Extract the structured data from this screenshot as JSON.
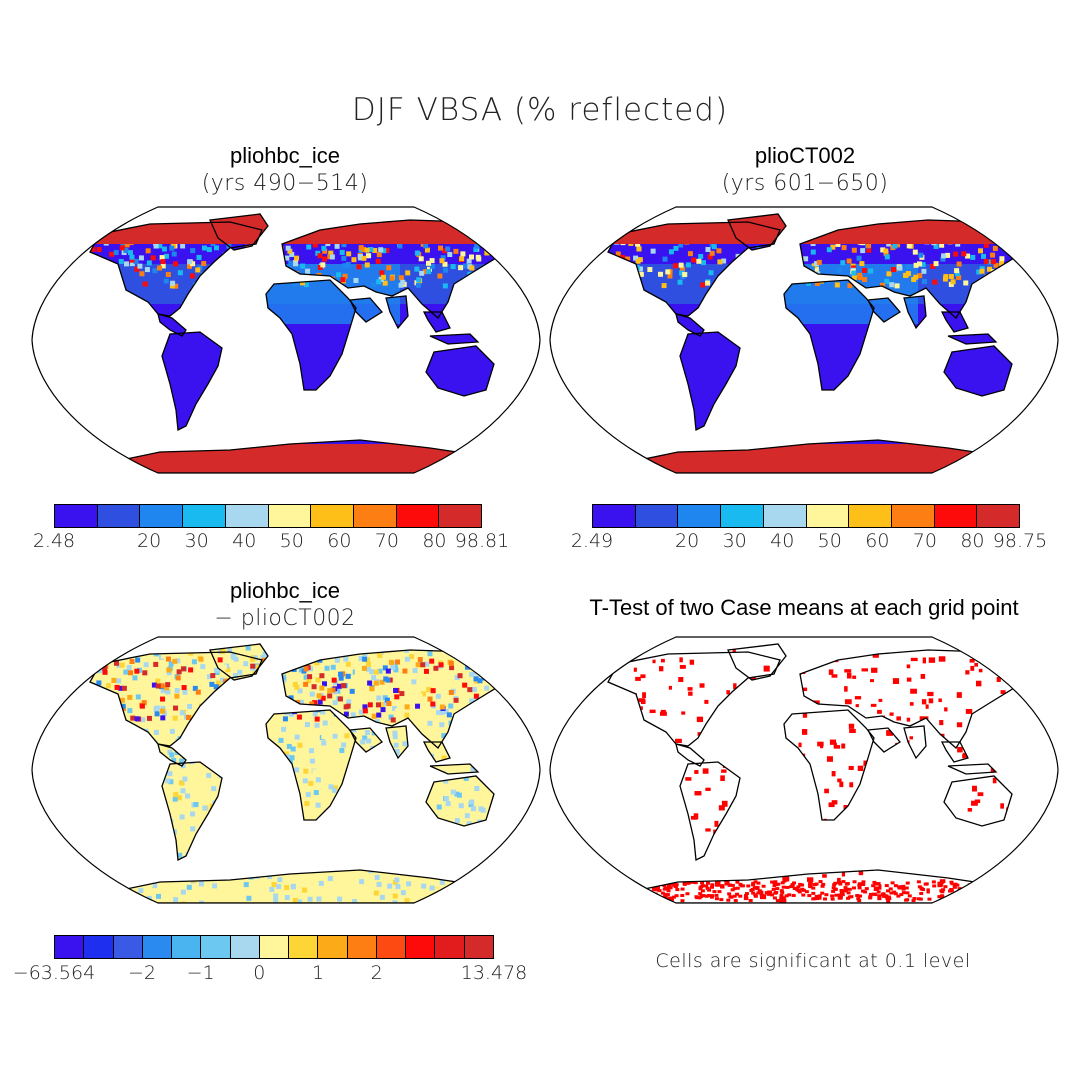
{
  "title": "DJF VBSA (% reflected)",
  "panels": [
    {
      "title": "pliohbc_ice",
      "subtitle": "(yrs 490−514)"
    },
    {
      "title": "plioCT002",
      "subtitle": "(yrs 601−650)"
    },
    {
      "title": "pliohbc_ice",
      "subtitle": "− plioCT002"
    },
    {
      "title": "T-Test of two Case means at each grid point"
    }
  ],
  "colorbars": [
    {
      "colors": [
        "#3a12f0",
        "#2f4fe0",
        "#1f86f0",
        "#18baf0",
        "#a8d8f0",
        "#fff59a",
        "#fdbf18",
        "#fd7e12",
        "#fd0a0a",
        "#d42a2a"
      ],
      "ticks": [
        "2.48",
        "20",
        "30",
        "40",
        "50",
        "60",
        "70",
        "80",
        "98.81"
      ]
    },
    {
      "colors": [
        "#3a12f0",
        "#2f4fe0",
        "#1f86f0",
        "#18baf0",
        "#a8d8f0",
        "#fff59a",
        "#fdbf18",
        "#fd7e12",
        "#fd0a0a",
        "#d42a2a"
      ],
      "ticks": [
        "2.49",
        "20",
        "30",
        "40",
        "50",
        "60",
        "70",
        "80",
        "98.75"
      ]
    },
    {
      "colors": [
        "#3a12f0",
        "#1f2ff0",
        "#3a5ae6",
        "#2a8af0",
        "#49b4f0",
        "#6cc8f0",
        "#a8d8f0",
        "#fff59a",
        "#fdd535",
        "#fdaa18",
        "#fd7e12",
        "#fd4a12",
        "#fd0a0a",
        "#e21c1c",
        "#d42a2a"
      ],
      "ticks": [
        "−63.564",
        "−2",
        "−1",
        "0",
        "1",
        "2",
        "13.478"
      ]
    }
  ],
  "note": "Cells are significant at 0.1 level",
  "icons": [
    "world-map"
  ]
}
